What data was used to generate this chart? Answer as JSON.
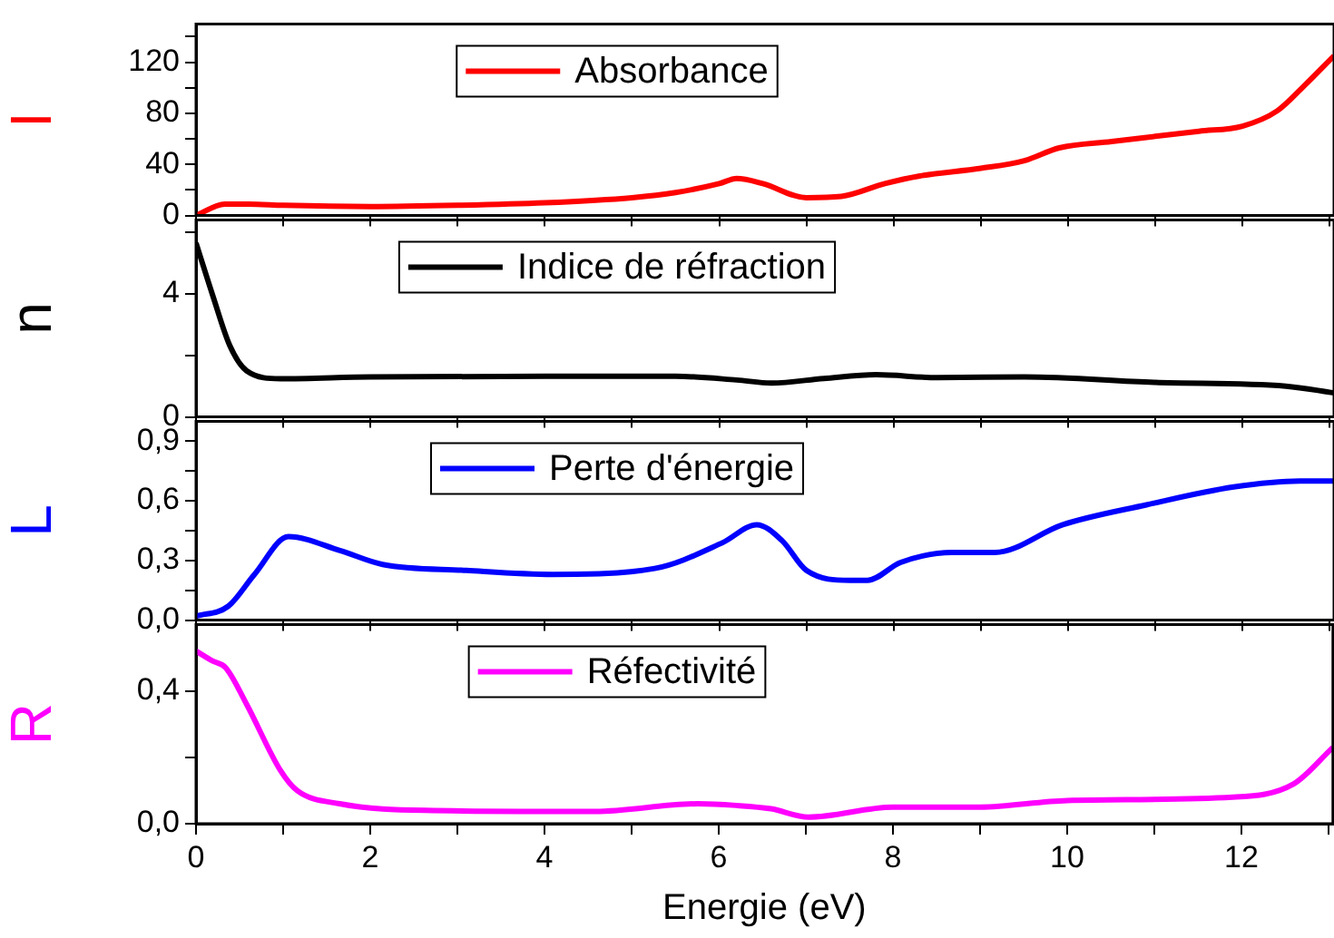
{
  "chart_data": [
    {
      "type": "line",
      "ylabel": "I",
      "legend": "top",
      "tick_labels": "y",
      "grid": false,
      "marker": "none",
      "xlim": [
        0,
        13.05
      ],
      "xticks": [
        0,
        {
          "value": 1,
          "label": null
        },
        2,
        {
          "value": 3,
          "label": null
        },
        4,
        {
          "value": 5,
          "label": null
        },
        6,
        {
          "value": 7,
          "label": null
        },
        8,
        {
          "value": 9,
          "label": null
        },
        10,
        {
          "value": 11,
          "label": null
        },
        12,
        {
          "value": 13,
          "label": null
        }
      ],
      "ylim": [
        0,
        150
      ],
      "yticks": [
        0,
        {
          "value": 20,
          "label": null
        },
        40,
        {
          "value": 60,
          "label": null
        },
        80,
        {
          "value": 100,
          "label": null
        },
        120,
        {
          "value": 140,
          "label": null
        }
      ],
      "x": [
        0,
        0.33,
        0.6,
        1,
        2,
        3,
        4,
        5,
        5.5,
        6,
        6.2,
        6.5,
        7,
        7.4,
        7.9,
        8.3,
        9,
        9.5,
        9.9,
        10.5,
        11,
        11.5,
        12,
        12.4,
        12.7,
        13.05
      ],
      "series": [
        {
          "name": "Absorbance",
          "color": "#ff0000",
          "values": [
            0,
            9,
            9,
            8,
            7,
            8,
            10,
            14,
            18,
            25,
            29,
            25,
            14,
            15,
            25,
            31,
            37,
            43,
            53,
            58,
            62,
            66,
            70,
            82,
            101,
            125
          ]
        }
      ]
    },
    {
      "type": "line",
      "ylabel": "n",
      "legend": "top",
      "tick_labels": "y",
      "grid": false,
      "marker": "none",
      "xlim": [
        0,
        13.05
      ],
      "xticks": [
        0,
        {
          "value": 1,
          "label": null
        },
        2,
        {
          "value": 3,
          "label": null
        },
        4,
        {
          "value": 5,
          "label": null
        },
        6,
        {
          "value": 7,
          "label": null
        },
        8,
        {
          "value": 9,
          "label": null
        },
        10,
        {
          "value": 11,
          "label": null
        },
        12,
        {
          "value": 13,
          "label": null
        }
      ],
      "ylim": [
        0,
        6.4
      ],
      "yticks": [
        0,
        {
          "value": 2,
          "label": null
        },
        4,
        {
          "value": 6,
          "label": null
        }
      ],
      "x": [
        0,
        0.19,
        0.39,
        0.58,
        0.97,
        2,
        4,
        5.5,
        6.2,
        6.6,
        7.2,
        7.8,
        8.5,
        9.5,
        11,
        12.5,
        13.05
      ],
      "series": [
        {
          "name": "Indice de réfraction",
          "color": "#000000",
          "values": [
            5.65,
            3.96,
            2.3,
            1.5,
            1.24,
            1.3,
            1.32,
            1.32,
            1.2,
            1.1,
            1.25,
            1.37,
            1.28,
            1.3,
            1.12,
            1.0,
            0.78
          ]
        }
      ]
    },
    {
      "type": "line",
      "ylabel": "L",
      "legend": "top",
      "tick_labels": "y",
      "grid": false,
      "marker": "none",
      "xlim": [
        0,
        13.05
      ],
      "xticks": [
        0,
        {
          "value": 1,
          "label": null
        },
        2,
        {
          "value": 3,
          "label": null
        },
        4,
        {
          "value": 5,
          "label": null
        },
        6,
        {
          "value": 7,
          "label": null
        },
        8,
        {
          "value": 9,
          "label": null
        },
        10,
        {
          "value": 11,
          "label": null
        },
        12,
        {
          "value": 13,
          "label": null
        }
      ],
      "ylim": [
        0,
        1.0
      ],
      "yticks": [
        {
          "value": 0,
          "label": "0,0"
        },
        {
          "value": 0.15,
          "label": null
        },
        {
          "value": 0.3,
          "label": "0,3"
        },
        {
          "value": 0.45,
          "label": null
        },
        {
          "value": 0.6,
          "label": "0,6"
        },
        {
          "value": 0.75,
          "label": null
        },
        {
          "value": 0.9,
          "label": "0,9"
        }
      ],
      "x": [
        0,
        0.37,
        0.67,
        1.06,
        1.65,
        2.14,
        3.1,
        4.09,
        5.26,
        6.04,
        6.43,
        6.72,
        7.0,
        7.5,
        7.7,
        8.08,
        8.67,
        9.16,
        9.94,
        10.9,
        11.9,
        12.66,
        13.05
      ],
      "series": [
        {
          "name": "Perte d'énergie",
          "color": "#0000ff",
          "values": [
            0.02,
            0.07,
            0.23,
            0.42,
            0.35,
            0.28,
            0.25,
            0.23,
            0.26,
            0.39,
            0.48,
            0.4,
            0.25,
            0.2,
            0.2,
            0.29,
            0.34,
            0.34,
            0.48,
            0.58,
            0.67,
            0.7,
            0.7
          ]
        }
      ]
    },
    {
      "type": "line",
      "xlabel": "Energie (eV)",
      "ylabel": "R",
      "legend": "top",
      "grid": false,
      "marker": "none",
      "xlim": [
        0,
        13.05
      ],
      "xticks": [
        0,
        {
          "value": 1,
          "label": null
        },
        2,
        {
          "value": 3,
          "label": null
        },
        4,
        {
          "value": 5,
          "label": null
        },
        6,
        {
          "value": 7,
          "label": null
        },
        8,
        {
          "value": 9,
          "label": null
        },
        10,
        {
          "value": 11,
          "label": null
        },
        12,
        {
          "value": 13,
          "label": null
        }
      ],
      "ylim": [
        0,
        0.6
      ],
      "yticks": [
        {
          "value": 0,
          "label": "0,0"
        },
        {
          "value": 0.2,
          "label": null
        },
        {
          "value": 0.4,
          "label": "0,4"
        }
      ],
      "x": [
        0,
        0.19,
        0.34,
        0.58,
        0.97,
        1.16,
        1.65,
        2.63,
        4.58,
        5.76,
        6.2,
        6.6,
        7.03,
        8.0,
        9.0,
        10.0,
        11.9,
        12.6,
        13.05
      ],
      "series": [
        {
          "name": "Réfectivité",
          "color": "#ff00ff",
          "values": [
            0.52,
            0.49,
            0.47,
            0.36,
            0.16,
            0.1,
            0.06,
            0.04,
            0.037,
            0.06,
            0.055,
            0.045,
            0.02,
            0.05,
            0.05,
            0.07,
            0.08,
            0.12,
            0.23
          ]
        }
      ]
    }
  ]
}
